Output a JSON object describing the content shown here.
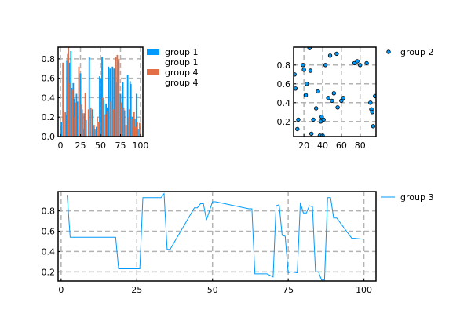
{
  "chart_data": [
    {
      "id": "p1",
      "type": "bar",
      "xlim": [
        -3,
        103
      ],
      "ylim": [
        0,
        0.92
      ],
      "xticks": [
        0,
        25,
        50,
        75,
        100
      ],
      "xtick_labels": [
        "0",
        "25",
        "50",
        "75",
        "100"
      ],
      "yticks": [
        0.0,
        0.2,
        0.4,
        0.6,
        0.8
      ],
      "ytick_labels": [
        "0.0",
        "0.2",
        "0.4",
        "0.6",
        "0.8"
      ],
      "grid": true,
      "legend_position": "outside-right",
      "series": [
        {
          "name": "group 1",
          "color": "#009AFA",
          "x": [
            1,
            4,
            7,
            8,
            11,
            13,
            14,
            16,
            17,
            20,
            21,
            25,
            27,
            29,
            30,
            32,
            36,
            40,
            43,
            45,
            49,
            51,
            52,
            54,
            57,
            58,
            60,
            62,
            65,
            67,
            68,
            70,
            72,
            75,
            78,
            80,
            84,
            87,
            88,
            90,
            93,
            95,
            97
          ],
          "values": [
            0.15,
            0.16,
            0.22,
            0.78,
            0.76,
            0.88,
            0.5,
            0.55,
            0.39,
            0.44,
            0.36,
            0.65,
            0.28,
            0.08,
            0.24,
            0.17,
            0.82,
            0.28,
            0.08,
            0.1,
            0.62,
            0.6,
            0.82,
            0.38,
            0.34,
            0.3,
            0.72,
            0.7,
            0.72,
            0.7,
            0.6,
            0.56,
            0.78,
            0.44,
            0.56,
            0.27,
            0.63,
            0.57,
            0.54,
            0.2,
            0.18,
            0.44,
            0.08
          ]
        },
        {
          "name": "group 1",
          "color": "#009AFA",
          "x": [],
          "values": []
        },
        {
          "name": "group 4",
          "color": "#E26F46",
          "x": [
            3,
            6,
            9,
            10,
            12,
            15,
            18,
            19,
            23,
            26,
            28,
            31,
            35,
            38,
            42,
            46,
            48,
            53,
            56,
            59,
            63,
            66,
            69,
            71,
            73,
            76,
            79,
            82,
            85,
            86,
            89,
            92,
            94,
            96,
            99
          ],
          "values": [
            0.76,
            0.25,
            0.85,
            0.92,
            0.55,
            0.48,
            0.2,
            0.35,
            0.72,
            0.33,
            0.24,
            0.45,
            0.28,
            0.3,
            0.12,
            0.2,
            0.15,
            0.4,
            0.23,
            0.26,
            0.36,
            0.28,
            0.82,
            0.84,
            0.8,
            0.35,
            0.3,
            0.12,
            0.2,
            0.28,
            0.18,
            0.25,
            0.1,
            0.15,
            0.14
          ]
        },
        {
          "name": "group 4",
          "color": "#E26F46",
          "x": [],
          "values": []
        }
      ]
    },
    {
      "id": "p2",
      "type": "scatter",
      "xlim": [
        9,
        97
      ],
      "ylim": [
        0.04,
        0.99
      ],
      "xticks": [
        20,
        40,
        60,
        80
      ],
      "xtick_labels": [
        "20",
        "40",
        "60",
        "80"
      ],
      "yticks": [
        0.2,
        0.4,
        0.6,
        0.8
      ],
      "ytick_labels": [
        "0.2",
        "0.4",
        "0.6",
        "0.8"
      ],
      "grid": true,
      "legend_position": "outside-right",
      "series": [
        {
          "name": "group 2",
          "color": "#009AFA",
          "x": [
            10,
            11,
            13,
            14,
            19,
            20,
            22,
            23,
            26,
            27,
            28,
            30,
            33,
            35,
            37,
            38,
            39,
            40,
            41,
            43,
            46,
            48,
            50,
            52,
            55,
            56,
            60,
            62,
            74,
            77,
            80,
            87,
            91,
            92,
            93,
            94,
            96
          ],
          "values": [
            0.7,
            0.55,
            0.12,
            0.22,
            0.8,
            0.75,
            0.48,
            0.6,
            0.98,
            0.74,
            0.07,
            0.22,
            0.34,
            0.52,
            0.05,
            0.2,
            0.25,
            0.05,
            0.22,
            0.8,
            0.45,
            0.9,
            0.42,
            0.5,
            0.92,
            0.35,
            0.42,
            0.45,
            0.82,
            0.84,
            0.8,
            0.82,
            0.4,
            0.33,
            0.3,
            0.15,
            0.47
          ]
        }
      ]
    },
    {
      "id": "p3",
      "type": "line",
      "xlim": [
        -1,
        104
      ],
      "ylim": [
        0.11,
        0.99
      ],
      "xticks": [
        0,
        25,
        50,
        75,
        100
      ],
      "xtick_labels": [
        "0",
        "25",
        "50",
        "75",
        "100"
      ],
      "yticks": [
        0.2,
        0.4,
        0.6,
        0.8
      ],
      "ytick_labels": [
        "0.2",
        "0.4",
        "0.6",
        "0.8"
      ],
      "grid": true,
      "legend_position": "outside-right",
      "series": [
        {
          "name": "group 3",
          "color": "#009AFA",
          "x": [
            2,
            3,
            18,
            19,
            26,
            27,
            33,
            34,
            35,
            36,
            44,
            45,
            46,
            47,
            48,
            50,
            51,
            62,
            63,
            64,
            68,
            70,
            71,
            72,
            73,
            74,
            75,
            76,
            78,
            79,
            80,
            81,
            82,
            83,
            84,
            85,
            86,
            87,
            88,
            89,
            90,
            91,
            96,
            97,
            100
          ],
          "values": [
            0.95,
            0.54,
            0.54,
            0.23,
            0.23,
            0.93,
            0.93,
            0.97,
            0.42,
            0.42,
            0.83,
            0.83,
            0.87,
            0.87,
            0.71,
            0.89,
            0.89,
            0.82,
            0.82,
            0.18,
            0.18,
            0.15,
            0.85,
            0.86,
            0.56,
            0.55,
            0.19,
            0.2,
            0.19,
            0.88,
            0.78,
            0.78,
            0.85,
            0.84,
            0.2,
            0.2,
            0.12,
            0.12,
            0.93,
            0.93,
            0.73,
            0.73,
            0.53,
            0.53,
            0.52
          ]
        }
      ]
    }
  ]
}
